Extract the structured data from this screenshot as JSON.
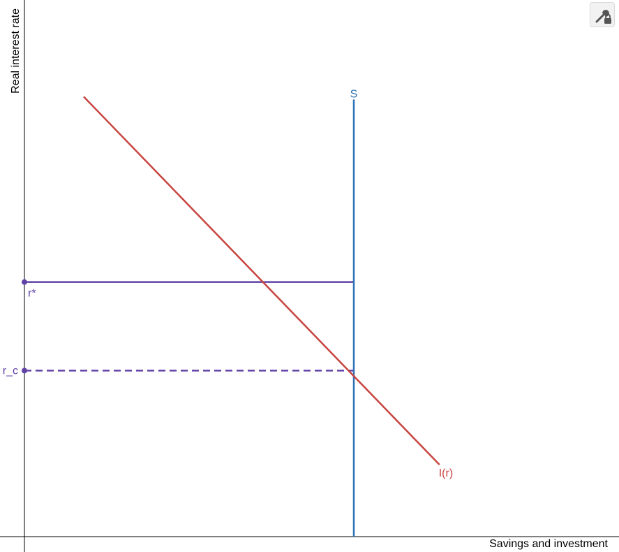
{
  "chart_data": {
    "type": "line",
    "xlabel": "Savings and investment",
    "ylabel": "Real interest rate",
    "xlim": [
      0,
      10
    ],
    "ylim": [
      0,
      10
    ],
    "grid": false,
    "series": [
      {
        "name": "S",
        "kind": "vertical",
        "x": 5.0,
        "y_range": [
          0,
          7.9
        ],
        "color": "#2d70b3"
      },
      {
        "name": "I(r)",
        "kind": "line",
        "points": [
          [
            0.9,
            7.95
          ],
          [
            6.3,
            1.3
          ]
        ],
        "color": "#c74440"
      }
    ],
    "levels": [
      {
        "name": "r*",
        "y": 4.6,
        "x_end": 5.0,
        "style": "solid",
        "color": "#6042a6"
      },
      {
        "name": "r_c",
        "y": 3.0,
        "x_end": 5.0,
        "style": "dashed",
        "color": "#6042a6"
      }
    ]
  },
  "toolbar": {
    "icon": "wrench-lock-icon"
  }
}
